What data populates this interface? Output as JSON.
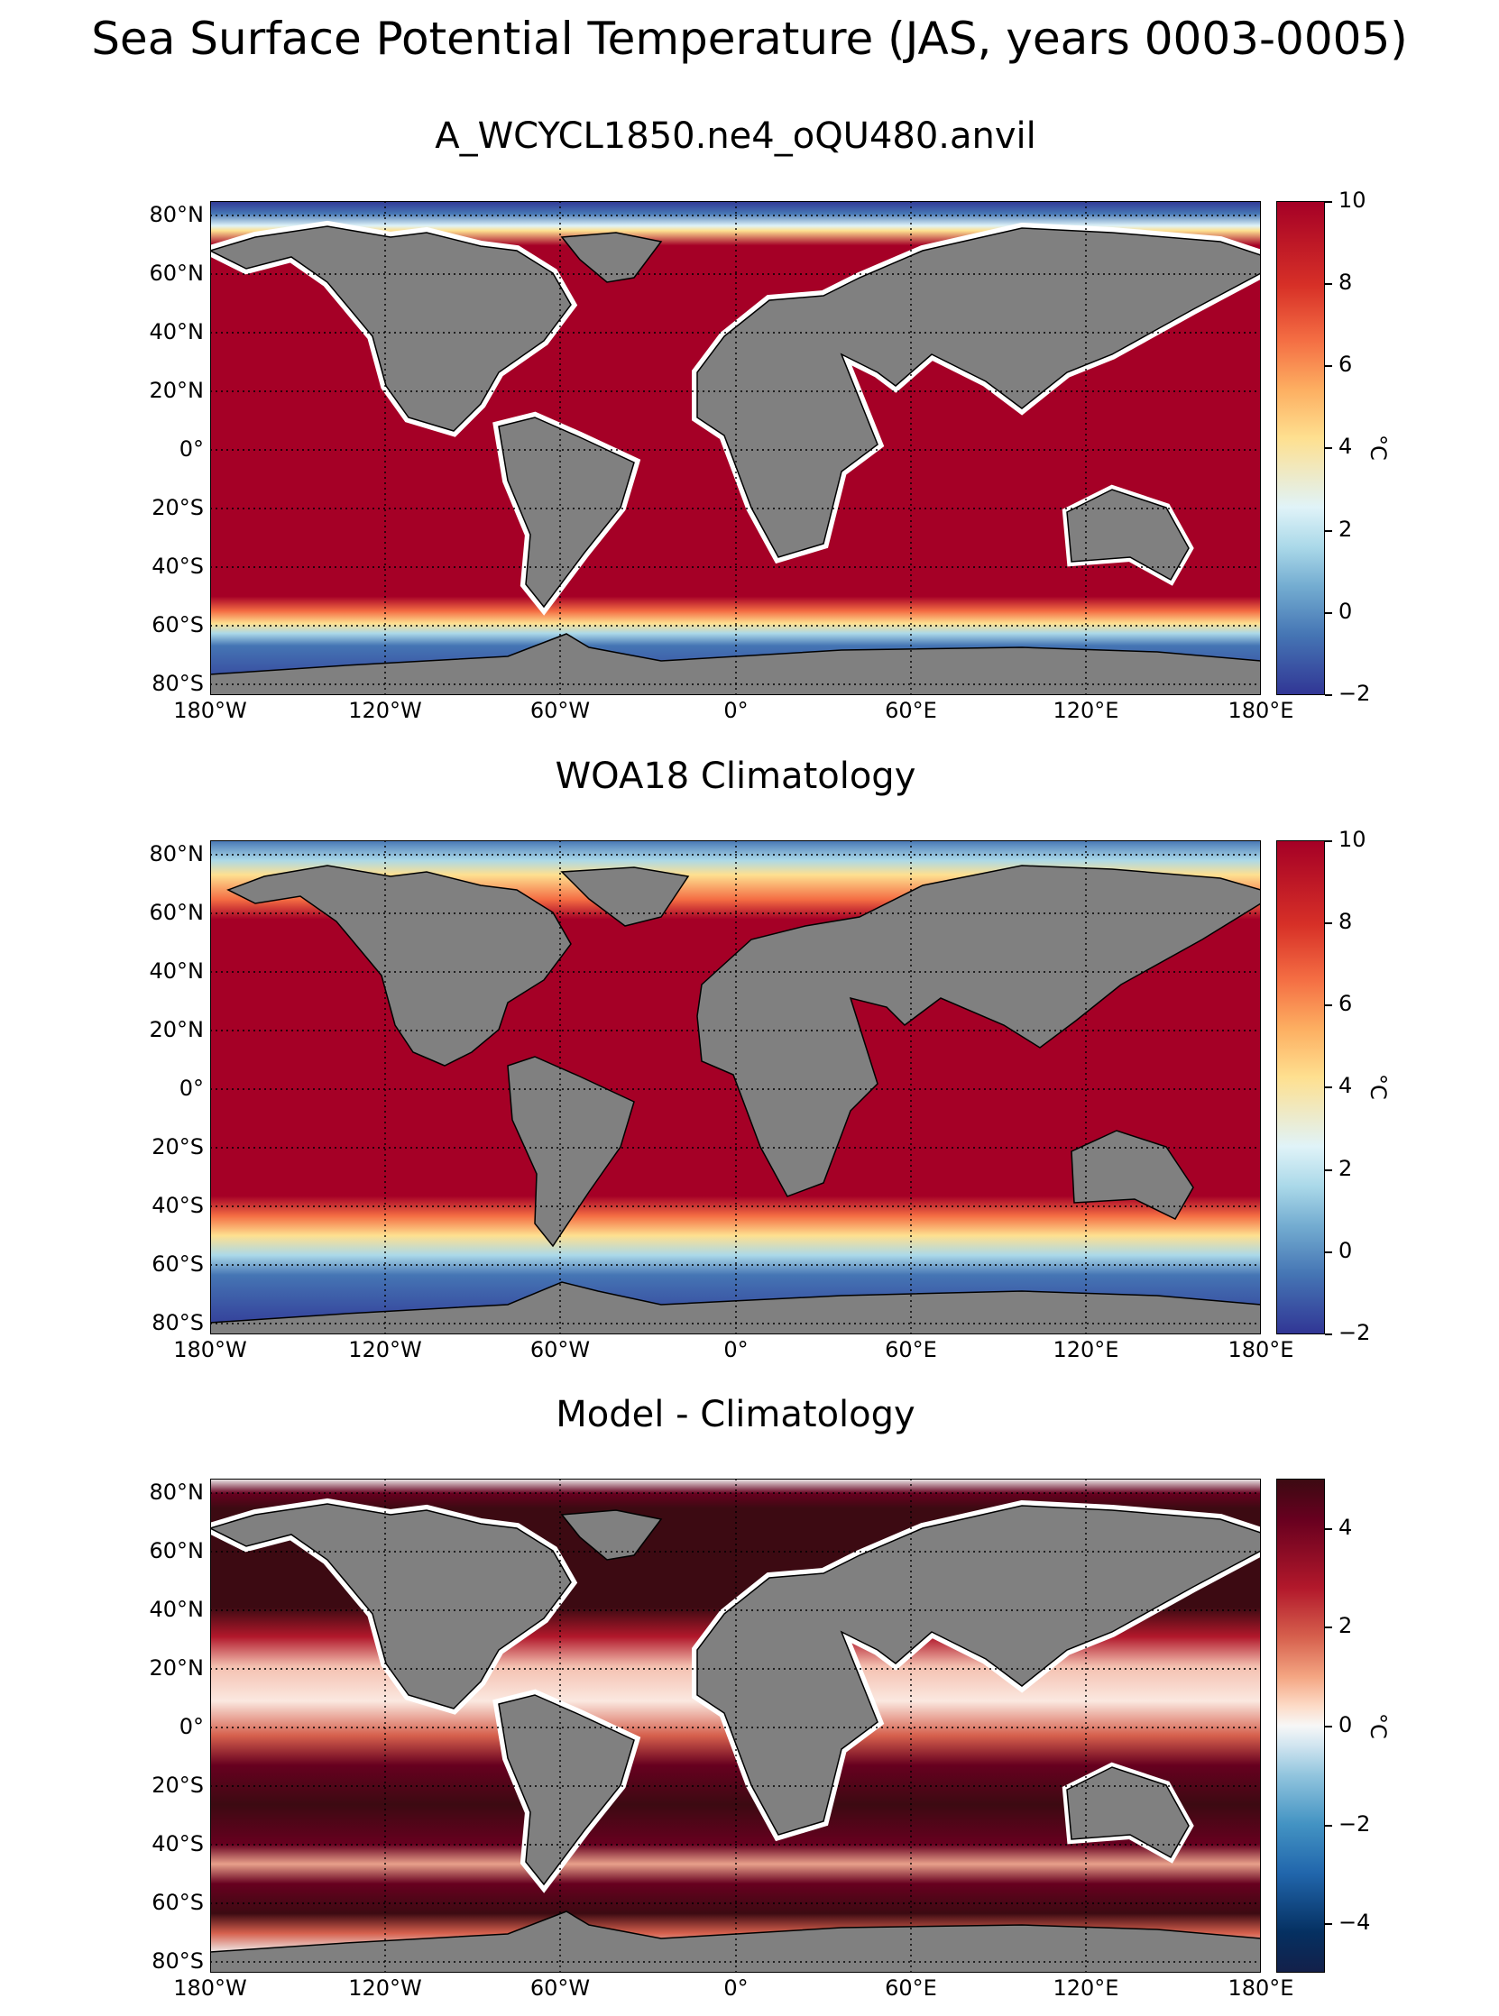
{
  "figure": {
    "title": "Sea Surface Potential Temperature (JAS, years 0003-0005)"
  },
  "axes": {
    "lat_labels": [
      "80°N",
      "60°N",
      "40°N",
      "20°N",
      "0°",
      "20°S",
      "40°S",
      "60°S",
      "80°S"
    ],
    "lon_labels": [
      "180°W",
      "120°W",
      "60°W",
      "0°",
      "60°E",
      "120°E",
      "180°E"
    ]
  },
  "colors": {
    "land": "#808080",
    "missing_ocean": "#ffffff",
    "ice_shelf": "#d3d3d3",
    "model_warm": "#a50026",
    "woa_cold": "#313695",
    "diff_high": "#3c0a12"
  },
  "panels": [
    {
      "title": "A_WCYCL1850.ne4_oQU480.anvil",
      "colorbar": {
        "ticks": [
          "10",
          "8",
          "6",
          "4",
          "2",
          "0",
          "−2"
        ],
        "unit": "°C",
        "min": -2,
        "max": 10,
        "colormap": "RdYlBu_r"
      }
    },
    {
      "title": "WOA18 Climatology",
      "colorbar": {
        "ticks": [
          "10",
          "8",
          "6",
          "4",
          "2",
          "0",
          "−2"
        ],
        "unit": "°C",
        "min": -2,
        "max": 10,
        "colormap": "RdYlBu_r"
      }
    },
    {
      "title": "Model - Climatology",
      "colorbar": {
        "ticks": [
          "4",
          "2",
          "0",
          "−2",
          "−4"
        ],
        "unit": "°C",
        "min": -5,
        "max": 5,
        "colormap": "RdBu_r"
      }
    }
  ]
}
